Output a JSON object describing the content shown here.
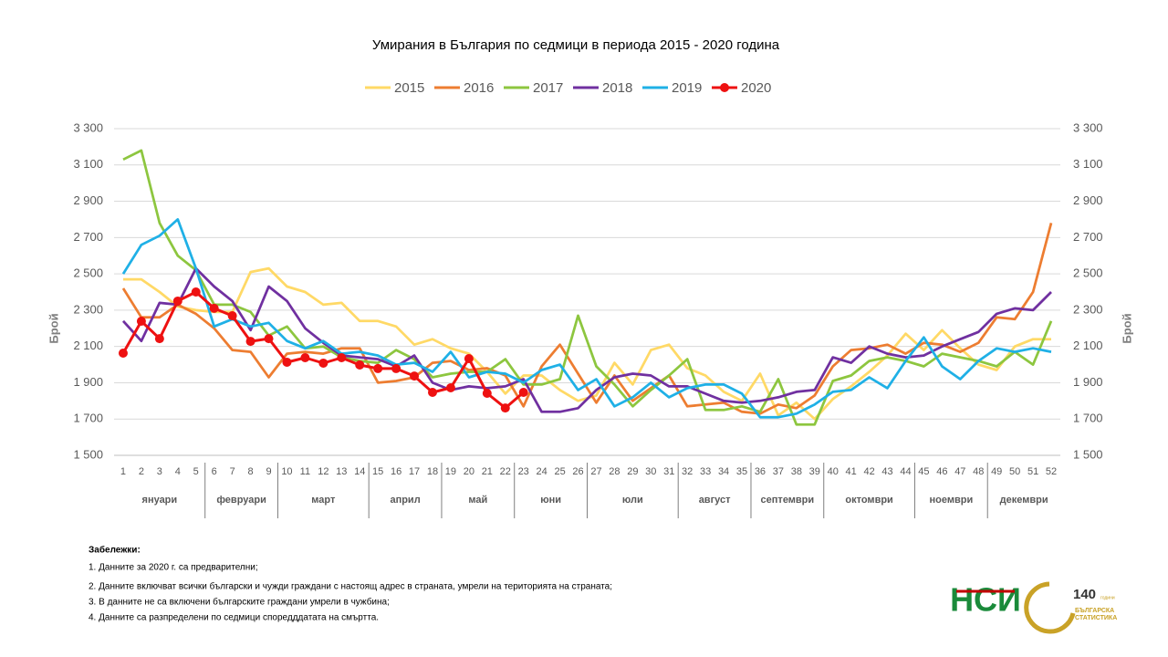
{
  "chart_data": {
    "type": "line",
    "title": "Умирания в България по седмици в периода 2015 - 2020 година",
    "y_label": "Брой",
    "y2_label": "Брой",
    "categories": [
      1,
      2,
      3,
      4,
      5,
      6,
      7,
      8,
      9,
      10,
      11,
      12,
      13,
      14,
      15,
      16,
      17,
      18,
      19,
      20,
      21,
      22,
      23,
      24,
      25,
      26,
      27,
      28,
      29,
      30,
      31,
      32,
      33,
      34,
      35,
      36,
      37,
      38,
      39,
      40,
      41,
      42,
      43,
      44,
      45,
      46,
      47,
      48,
      49,
      50,
      51,
      52
    ],
    "month_groups": [
      {
        "label": "януари",
        "span": 5
      },
      {
        "label": "февруари",
        "span": 4
      },
      {
        "label": "март",
        "span": 5
      },
      {
        "label": "април",
        "span": 4
      },
      {
        "label": "май",
        "span": 4
      },
      {
        "label": "юни",
        "span": 4
      },
      {
        "label": "юли",
        "span": 5
      },
      {
        "label": "август",
        "span": 4
      },
      {
        "label": "септември",
        "span": 4
      },
      {
        "label": "октомври",
        "span": 5
      },
      {
        "label": "ноември",
        "span": 4
      },
      {
        "label": "декември",
        "span": 4
      }
    ],
    "ylim": [
      1500,
      3300
    ],
    "yticks": [
      {
        "value": 1500,
        "label": "1 500"
      },
      {
        "value": 1700,
        "label": "1 700"
      },
      {
        "value": 1900,
        "label": "1 900"
      },
      {
        "value": 2100,
        "label": "2 100"
      },
      {
        "value": 2300,
        "label": "2 300"
      },
      {
        "value": 2500,
        "label": "2 500"
      },
      {
        "value": 2700,
        "label": "2 700"
      },
      {
        "value": 2900,
        "label": "2 900"
      },
      {
        "value": 3100,
        "label": "3 100"
      },
      {
        "value": 3300,
        "label": "3 300"
      }
    ],
    "y2lim": [
      1500,
      3300
    ],
    "y2ticks": [
      {
        "value": 1500,
        "label": "1 500"
      },
      {
        "value": 1700,
        "label": "1 700"
      },
      {
        "value": 1900,
        "label": "1 900"
      },
      {
        "value": 2100,
        "label": "2 100"
      },
      {
        "value": 2300,
        "label": "2 300"
      },
      {
        "value": 2500,
        "label": "2 500"
      },
      {
        "value": 2700,
        "label": "2 700"
      },
      {
        "value": 2900,
        "label": "2 900"
      },
      {
        "value": 3100,
        "label": "3 100"
      },
      {
        "value": 3300,
        "label": "3 300"
      }
    ],
    "grid": true,
    "legend": "top",
    "series": [
      {
        "name": "2015",
        "color": "#ffd966",
        "values": [
          2470,
          2470,
          2400,
          2320,
          2300,
          2290,
          2290,
          2510,
          2530,
          2430,
          2400,
          2330,
          2340,
          2240,
          2240,
          2210,
          2110,
          2140,
          2090,
          2060,
          1960,
          1840,
          1940,
          1940,
          1860,
          1800,
          1830,
          2010,
          1890,
          2080,
          2110,
          1980,
          1940,
          1850,
          1800,
          1950,
          1720,
          1790,
          1700,
          1810,
          1880,
          1960,
          2050,
          2170,
          2080,
          2190,
          2090,
          2000,
          1970,
          2100,
          2140,
          2140
        ]
      },
      {
        "name": "2016",
        "color": "#ed7d31",
        "values": [
          2420,
          2260,
          2260,
          2330,
          2280,
          2200,
          2080,
          2070,
          1930,
          2060,
          2070,
          2060,
          2090,
          2090,
          1900,
          1910,
          1930,
          2010,
          2020,
          1970,
          1980,
          1940,
          1770,
          1990,
          2110,
          1950,
          1790,
          1940,
          1800,
          1870,
          1940,
          1770,
          1780,
          1790,
          1740,
          1730,
          1780,
          1760,
          1830,
          1990,
          2080,
          2090,
          2110,
          2060,
          2120,
          2110,
          2070,
          2120,
          2260,
          2250,
          2400,
          2780
        ]
      },
      {
        "name": "2017",
        "color": "#8dc63f",
        "values": [
          3130,
          3180,
          2780,
          2600,
          2520,
          2330,
          2330,
          2290,
          2160,
          2210,
          2090,
          2100,
          2040,
          2020,
          2010,
          2080,
          2030,
          1930,
          1950,
          1960,
          1960,
          2030,
          1890,
          1890,
          1920,
          2270,
          1990,
          1890,
          1770,
          1860,
          1940,
          2030,
          1750,
          1750,
          1770,
          1740,
          1920,
          1670,
          1670,
          1910,
          1940,
          2020,
          2040,
          2020,
          1990,
          2060,
          2040,
          2020,
          1990,
          2070,
          2000,
          2240
        ]
      },
      {
        "name": "2018",
        "color": "#7030a0",
        "values": [
          2240,
          2130,
          2340,
          2330,
          2530,
          2430,
          2350,
          2190,
          2430,
          2350,
          2200,
          2120,
          2050,
          2040,
          2030,
          1990,
          2050,
          1900,
          1860,
          1880,
          1870,
          1880,
          1920,
          1740,
          1740,
          1760,
          1860,
          1930,
          1950,
          1940,
          1880,
          1880,
          1840,
          1800,
          1790,
          1800,
          1820,
          1850,
          1860,
          2040,
          2010,
          2100,
          2060,
          2040,
          2050,
          2100,
          2140,
          2180,
          2280,
          2310,
          2300,
          2400
        ]
      },
      {
        "name": "2019",
        "color": "#1fb0e6",
        "values": [
          2500,
          2660,
          2710,
          2800,
          2530,
          2210,
          2250,
          2210,
          2230,
          2130,
          2090,
          2130,
          2060,
          2070,
          2050,
          2000,
          2010,
          1960,
          2070,
          1930,
          1960,
          1950,
          1900,
          1970,
          2000,
          1860,
          1920,
          1770,
          1820,
          1900,
          1820,
          1870,
          1890,
          1890,
          1840,
          1710,
          1710,
          1730,
          1780,
          1850,
          1860,
          1930,
          1870,
          2020,
          2150,
          1990,
          1920,
          2020,
          2090,
          2070,
          2090,
          2070
        ]
      },
      {
        "name": "2020",
        "color": "#ee1111",
        "marker": true,
        "values": [
          2063,
          2239,
          2143,
          2350,
          2400,
          2310,
          2269,
          2128,
          2143,
          2013,
          2038,
          2008,
          2038,
          1998,
          1978,
          1978,
          1937,
          1847,
          1872,
          2033,
          1842,
          1761,
          1847,
          null,
          null,
          null,
          null,
          null,
          null,
          null,
          null,
          null,
          null,
          null,
          null,
          null,
          null,
          null,
          null,
          null,
          null,
          null,
          null,
          null,
          null,
          null,
          null,
          null,
          null,
          null,
          null,
          null
        ]
      }
    ]
  },
  "notes": {
    "heading": "Забележки:",
    "items": [
      "1. Данните за 2020 г. са предварителни;",
      "2. Данните включват всички български и чужди граждани с настоящ адрес в страната, умрели на територията на страната;",
      "3. В данните не са включени българските граждани умрели в чужбина;",
      "4. Данните са разпределени по седмици споредддатата на смъртта."
    ]
  },
  "logo": {
    "nsi": "НСИ",
    "years": "140",
    "years_word": "години",
    "line1": "БЪЛГАРСКА",
    "line2": "СТАТИСТИКА"
  }
}
